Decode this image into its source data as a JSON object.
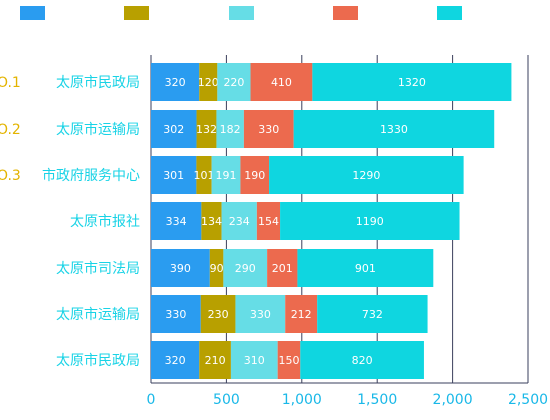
{
  "legend": {
    "items": [
      {
        "name": "",
        "color": "#2a9cf0"
      },
      {
        "name": "",
        "color": "#b8a000"
      },
      {
        "name": "",
        "color": "#66dde6"
      },
      {
        "name": "",
        "color": "#ec6a4e"
      },
      {
        "name": "",
        "color": "#0fd6e0"
      }
    ]
  },
  "chart_data": {
    "type": "bar",
    "orientation": "horizontal",
    "stacked": true,
    "title": "",
    "xlabel": "",
    "ylabel": "",
    "xlim": [
      0,
      2500
    ],
    "x_ticks": [
      "0",
      "500",
      "1,000",
      "1,500",
      "2,000",
      "2,500"
    ],
    "grid": "vertical",
    "legend_position": "top",
    "categories": [
      "太原市民政局",
      "太原市运输局",
      "市政府服务中心",
      "太原市报社",
      "太原市司法局",
      "太原市运输局",
      "太原市民政局"
    ],
    "rank_labels": [
      "O.1",
      "O.2",
      "O.3",
      "",
      "",
      "",
      ""
    ],
    "series": [
      {
        "values": [
          320,
          302,
          301,
          334,
          390,
          330,
          320
        ],
        "color": "#2a9cf0"
      },
      {
        "values": [
          120,
          132,
          101,
          134,
          90,
          230,
          210
        ],
        "color": "#b8a000"
      },
      {
        "values": [
          220,
          182,
          191,
          234,
          290,
          330,
          310
        ],
        "color": "#66dde6"
      },
      {
        "values": [
          410,
          330,
          190,
          154,
          201,
          212,
          150
        ],
        "color": "#ec6a4e"
      },
      {
        "values": [
          1320,
          1330,
          1290,
          1190,
          901,
          732,
          820
        ],
        "color": "#0fd6e0"
      }
    ]
  }
}
